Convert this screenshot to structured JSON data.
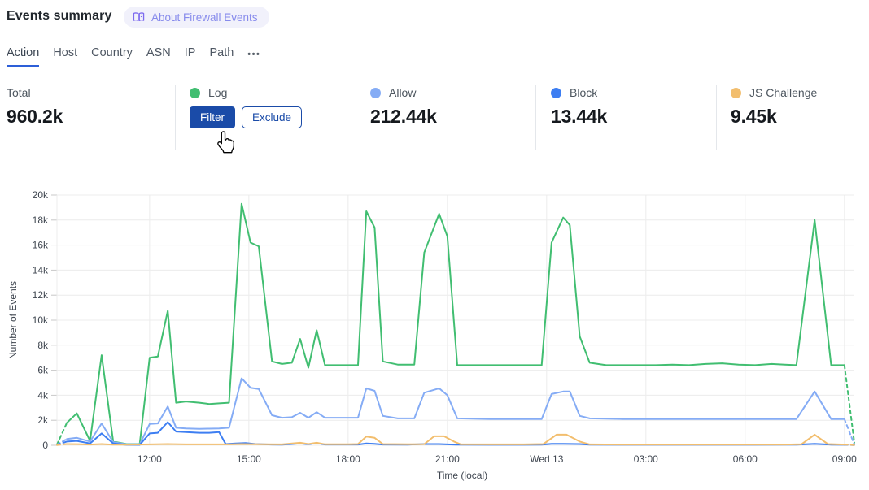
{
  "header": {
    "title": "Events summary",
    "about_badge": "About Firewall Events"
  },
  "tabs": {
    "items": [
      "Action",
      "Host",
      "Country",
      "ASN",
      "IP",
      "Path"
    ],
    "active": "Action",
    "more_label": "•••"
  },
  "stats": {
    "total": {
      "label": "Total",
      "value": "960.2k"
    },
    "cards": [
      {
        "label": "Log",
        "color": "#41BE71",
        "value": null,
        "actions": [
          "Filter",
          "Exclude"
        ]
      },
      {
        "label": "Allow",
        "color": "#85ACF5",
        "value": "212.44k",
        "actions": null
      },
      {
        "label": "Block",
        "color": "#3D7EF2",
        "value": "13.44k",
        "actions": null
      },
      {
        "label": "JS Challenge",
        "color": "#F2BE6E",
        "value": "9.45k",
        "actions": null
      }
    ]
  },
  "colors": {
    "accent_blue": "#1A4BA8",
    "tab_underline": "#2D5FD8",
    "grid_line": "#ececec",
    "tick_mark": "#c8c8c8",
    "axis_text": "#3f4650"
  },
  "chart_data": {
    "type": "line",
    "title": "",
    "xlabel": "Time (local)",
    "ylabel": "Number of Events",
    "x_unit_note": "hours local time; 24 = Wed 13 00:00",
    "xlim": [
      9.2,
      33.3
    ],
    "ylim": [
      0,
      20000
    ],
    "grid": true,
    "legend_position": "top-cards",
    "x_ticks": {
      "values": [
        12,
        15,
        18,
        21,
        24,
        27,
        30,
        33
      ],
      "labels": [
        "12:00",
        "15:00",
        "18:00",
        "21:00",
        "Wed 13",
        "03:00",
        "06:00",
        "09:00"
      ]
    },
    "y_ticks": {
      "values": [
        0,
        2000,
        4000,
        6000,
        8000,
        10000,
        12000,
        14000,
        16000,
        18000,
        20000
      ],
      "labels": [
        "0",
        "2k",
        "4k",
        "6k",
        "8k",
        "10k",
        "12k",
        "14k",
        "16k",
        "18k",
        "20k"
      ]
    },
    "dashed_first_last_segment": true,
    "series": [
      {
        "name": "Log",
        "color": "#41BE71",
        "points": [
          [
            9.2,
            50
          ],
          [
            9.5,
            1800
          ],
          [
            9.8,
            2550
          ],
          [
            10.2,
            350
          ],
          [
            10.55,
            7200
          ],
          [
            10.9,
            300
          ],
          [
            11.3,
            100
          ],
          [
            11.7,
            100
          ],
          [
            12.0,
            7000
          ],
          [
            12.25,
            7100
          ],
          [
            12.55,
            10750
          ],
          [
            12.8,
            3400
          ],
          [
            13.1,
            3500
          ],
          [
            13.5,
            3400
          ],
          [
            13.8,
            3300
          ],
          [
            14.1,
            3350
          ],
          [
            14.4,
            3400
          ],
          [
            14.78,
            19300
          ],
          [
            15.05,
            16200
          ],
          [
            15.3,
            15900
          ],
          [
            15.7,
            6700
          ],
          [
            16.0,
            6500
          ],
          [
            16.3,
            6600
          ],
          [
            16.55,
            8500
          ],
          [
            16.8,
            6200
          ],
          [
            17.05,
            9200
          ],
          [
            17.3,
            6400
          ],
          [
            17.8,
            6400
          ],
          [
            18.3,
            6400
          ],
          [
            18.55,
            18700
          ],
          [
            18.8,
            17400
          ],
          [
            19.05,
            6700
          ],
          [
            19.5,
            6450
          ],
          [
            20.0,
            6450
          ],
          [
            20.3,
            15400
          ],
          [
            20.75,
            18500
          ],
          [
            21.0,
            16700
          ],
          [
            21.3,
            6400
          ],
          [
            21.8,
            6400
          ],
          [
            22.3,
            6400
          ],
          [
            22.8,
            6400
          ],
          [
            23.3,
            6400
          ],
          [
            23.85,
            6400
          ],
          [
            24.15,
            16200
          ],
          [
            24.5,
            18200
          ],
          [
            24.7,
            17600
          ],
          [
            25.0,
            8700
          ],
          [
            25.3,
            6600
          ],
          [
            25.8,
            6400
          ],
          [
            26.3,
            6400
          ],
          [
            26.8,
            6400
          ],
          [
            27.3,
            6400
          ],
          [
            27.8,
            6450
          ],
          [
            28.3,
            6400
          ],
          [
            28.8,
            6500
          ],
          [
            29.3,
            6550
          ],
          [
            29.8,
            6450
          ],
          [
            30.3,
            6400
          ],
          [
            30.8,
            6500
          ],
          [
            31.2,
            6450
          ],
          [
            31.55,
            6400
          ],
          [
            32.1,
            18000
          ],
          [
            32.6,
            6400
          ],
          [
            33.0,
            6400
          ],
          [
            33.3,
            200
          ]
        ]
      },
      {
        "name": "Allow",
        "color": "#85ACF5",
        "points": [
          [
            9.2,
            50
          ],
          [
            9.5,
            500
          ],
          [
            9.8,
            600
          ],
          [
            10.2,
            300
          ],
          [
            10.55,
            1750
          ],
          [
            10.9,
            250
          ],
          [
            11.3,
            80
          ],
          [
            11.7,
            80
          ],
          [
            12.0,
            1700
          ],
          [
            12.25,
            1750
          ],
          [
            12.55,
            3100
          ],
          [
            12.8,
            1400
          ],
          [
            13.1,
            1350
          ],
          [
            13.5,
            1320
          ],
          [
            13.8,
            1330
          ],
          [
            14.1,
            1350
          ],
          [
            14.4,
            1400
          ],
          [
            14.78,
            5350
          ],
          [
            15.05,
            4600
          ],
          [
            15.3,
            4500
          ],
          [
            15.7,
            2400
          ],
          [
            16.0,
            2200
          ],
          [
            16.3,
            2250
          ],
          [
            16.55,
            2600
          ],
          [
            16.8,
            2200
          ],
          [
            17.05,
            2650
          ],
          [
            17.3,
            2200
          ],
          [
            17.8,
            2200
          ],
          [
            18.3,
            2200
          ],
          [
            18.55,
            4550
          ],
          [
            18.8,
            4350
          ],
          [
            19.05,
            2350
          ],
          [
            19.5,
            2150
          ],
          [
            20.0,
            2150
          ],
          [
            20.3,
            4200
          ],
          [
            20.75,
            4550
          ],
          [
            21.0,
            4000
          ],
          [
            21.3,
            2150
          ],
          [
            22.3,
            2100
          ],
          [
            23.3,
            2100
          ],
          [
            23.85,
            2100
          ],
          [
            24.15,
            4100
          ],
          [
            24.5,
            4300
          ],
          [
            24.7,
            4300
          ],
          [
            25.0,
            2350
          ],
          [
            25.3,
            2150
          ],
          [
            26.3,
            2100
          ],
          [
            27.3,
            2100
          ],
          [
            28.3,
            2100
          ],
          [
            29.3,
            2100
          ],
          [
            30.3,
            2100
          ],
          [
            31.55,
            2100
          ],
          [
            32.1,
            4300
          ],
          [
            32.6,
            2100
          ],
          [
            33.0,
            2100
          ],
          [
            33.3,
            50
          ]
        ]
      },
      {
        "name": "Block",
        "color": "#3D7EF2",
        "points": [
          [
            9.2,
            30
          ],
          [
            9.5,
            300
          ],
          [
            9.8,
            350
          ],
          [
            10.2,
            150
          ],
          [
            10.55,
            950
          ],
          [
            10.9,
            150
          ],
          [
            11.3,
            30
          ],
          [
            11.7,
            30
          ],
          [
            12.0,
            950
          ],
          [
            12.25,
            1000
          ],
          [
            12.55,
            1850
          ],
          [
            12.8,
            1100
          ],
          [
            13.1,
            1050
          ],
          [
            13.5,
            1000
          ],
          [
            13.8,
            1000
          ],
          [
            14.1,
            1050
          ],
          [
            14.3,
            100
          ],
          [
            14.6,
            150
          ],
          [
            14.9,
            180
          ],
          [
            15.2,
            100
          ],
          [
            15.7,
            60
          ],
          [
            16.0,
            50
          ],
          [
            16.55,
            150
          ],
          [
            16.8,
            80
          ],
          [
            17.05,
            180
          ],
          [
            17.3,
            60
          ],
          [
            18.3,
            60
          ],
          [
            18.55,
            150
          ],
          [
            18.8,
            120
          ],
          [
            19.05,
            60
          ],
          [
            19.8,
            50
          ],
          [
            20.3,
            100
          ],
          [
            20.75,
            100
          ],
          [
            21.25,
            50
          ],
          [
            22.3,
            40
          ],
          [
            23.3,
            40
          ],
          [
            23.85,
            50
          ],
          [
            24.15,
            120
          ],
          [
            24.5,
            120
          ],
          [
            25.0,
            100
          ],
          [
            25.3,
            50
          ],
          [
            26.3,
            40
          ],
          [
            27.3,
            40
          ],
          [
            28.3,
            40
          ],
          [
            29.3,
            40
          ],
          [
            30.3,
            40
          ],
          [
            31.55,
            50
          ],
          [
            32.1,
            120
          ],
          [
            32.6,
            50
          ],
          [
            33.0,
            40
          ],
          [
            33.3,
            20
          ]
        ]
      },
      {
        "name": "JS Challenge",
        "color": "#F2BE6E",
        "points": [
          [
            9.2,
            20
          ],
          [
            9.5,
            100
          ],
          [
            9.8,
            90
          ],
          [
            10.2,
            60
          ],
          [
            10.55,
            100
          ],
          [
            10.9,
            50
          ],
          [
            11.3,
            50
          ],
          [
            12.0,
            70
          ],
          [
            12.55,
            100
          ],
          [
            13.1,
            70
          ],
          [
            13.8,
            70
          ],
          [
            14.4,
            70
          ],
          [
            14.78,
            100
          ],
          [
            15.3,
            80
          ],
          [
            16.0,
            70
          ],
          [
            16.55,
            200
          ],
          [
            16.8,
            100
          ],
          [
            17.05,
            200
          ],
          [
            17.3,
            80
          ],
          [
            18.0,
            80
          ],
          [
            18.3,
            100
          ],
          [
            18.55,
            700
          ],
          [
            18.8,
            600
          ],
          [
            19.05,
            100
          ],
          [
            19.8,
            80
          ],
          [
            20.3,
            90
          ],
          [
            20.6,
            720
          ],
          [
            20.9,
            720
          ],
          [
            21.2,
            300
          ],
          [
            21.4,
            80
          ],
          [
            22.3,
            70
          ],
          [
            23.3,
            70
          ],
          [
            23.9,
            100
          ],
          [
            24.3,
            850
          ],
          [
            24.6,
            850
          ],
          [
            25.0,
            300
          ],
          [
            25.3,
            70
          ],
          [
            26.3,
            60
          ],
          [
            27.3,
            60
          ],
          [
            28.3,
            60
          ],
          [
            29.3,
            60
          ],
          [
            30.3,
            60
          ],
          [
            31.2,
            60
          ],
          [
            31.7,
            80
          ],
          [
            32.1,
            850
          ],
          [
            32.5,
            100
          ],
          [
            33.0,
            60
          ],
          [
            33.3,
            20
          ]
        ]
      }
    ]
  }
}
